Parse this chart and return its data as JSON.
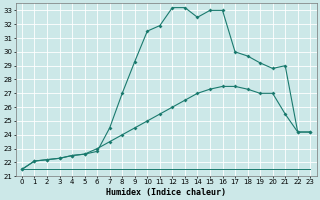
{
  "xlabel": "Humidex (Indice chaleur)",
  "xlim": [
    -0.5,
    23.5
  ],
  "ylim": [
    21.0,
    33.5
  ],
  "yticks": [
    21,
    22,
    23,
    24,
    25,
    26,
    27,
    28,
    29,
    30,
    31,
    32,
    33
  ],
  "xticks": [
    0,
    1,
    2,
    3,
    4,
    5,
    6,
    7,
    8,
    9,
    10,
    11,
    12,
    13,
    14,
    15,
    16,
    17,
    18,
    19,
    20,
    21,
    22,
    23
  ],
  "bg_color": "#cce8e8",
  "grid_color": "#ffffff",
  "line_color": "#1a7a6e",
  "line_top_x": [
    0,
    1,
    2,
    3,
    4,
    5,
    6,
    7,
    8,
    9,
    10,
    11,
    12,
    13,
    14,
    15,
    16,
    17,
    18,
    19,
    20,
    21,
    22,
    23
  ],
  "line_top_y": [
    21.5,
    22.1,
    22.2,
    22.3,
    22.5,
    22.6,
    22.8,
    24.5,
    27.0,
    29.3,
    31.5,
    31.9,
    33.2,
    33.2,
    32.5,
    33.0,
    33.0,
    30.0,
    29.7,
    29.2,
    28.8,
    29.0,
    24.2,
    24.2
  ],
  "line_mid_x": [
    0,
    1,
    2,
    3,
    4,
    5,
    6,
    7,
    8,
    9,
    10,
    11,
    12,
    13,
    14,
    15,
    16,
    17,
    18,
    19,
    20,
    21,
    22,
    23
  ],
  "line_mid_y": [
    21.5,
    22.1,
    22.2,
    22.3,
    22.5,
    22.6,
    23.0,
    23.5,
    24.0,
    24.5,
    25.0,
    25.5,
    26.0,
    26.5,
    27.0,
    27.3,
    27.5,
    27.5,
    27.3,
    27.0,
    27.0,
    25.5,
    24.2,
    24.2
  ],
  "line_bot_x": [
    0,
    1,
    2,
    3,
    4,
    5,
    6,
    7,
    8,
    9,
    10,
    11,
    12,
    13,
    14,
    15,
    16,
    17,
    18,
    19,
    20,
    21,
    22,
    23
  ],
  "line_bot_y": [
    21.5,
    21.5,
    21.5,
    21.5,
    21.5,
    21.5,
    21.5,
    21.5,
    21.5,
    21.5,
    21.5,
    21.5,
    21.5,
    21.5,
    21.5,
    21.5,
    21.5,
    21.5,
    21.5,
    21.5,
    21.5,
    21.5,
    21.5,
    21.5
  ]
}
